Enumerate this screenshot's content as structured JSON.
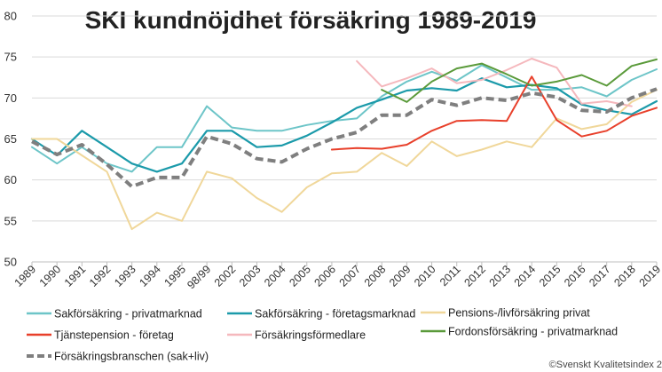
{
  "chart_data": {
    "type": "line",
    "title": "SKI kundnöjdhet försäkring 1989-2019",
    "categories": [
      "1989",
      "1990",
      "1991",
      "1992",
      "1993",
      "1994",
      "1995",
      "98/99",
      "2002",
      "2003",
      "2004",
      "2005",
      "2006",
      "2007",
      "2008",
      "2009",
      "2010",
      "2011",
      "2012",
      "2013",
      "2014",
      "2015",
      "2016",
      "2017",
      "2018",
      "2019"
    ],
    "ylim": [
      50,
      80
    ],
    "yticks": [
      50,
      55,
      60,
      65,
      70,
      75,
      80
    ],
    "grid": true,
    "legend_position": "bottom",
    "series": [
      {
        "name": "Sakförsäkring - privatmarknad",
        "color": "#6dc5c8",
        "width": 2,
        "dash": false,
        "values": [
          64,
          62,
          64,
          62,
          61,
          64,
          64,
          69,
          66.4,
          66,
          66,
          66.7,
          67.2,
          67.5,
          70.2,
          72,
          73.2,
          72.1,
          74,
          72.5,
          71,
          71,
          71.3,
          70.2,
          72.2,
          73.5
        ]
      },
      {
        "name": "Sakförsäkring - företagsmarknad",
        "color": "#1b9aaa",
        "width": 2.2,
        "dash": false,
        "values": [
          65,
          63,
          66,
          64,
          62,
          61,
          62,
          66,
          66,
          64,
          64.2,
          65.4,
          67,
          68.8,
          69.8,
          70.9,
          71.2,
          70.9,
          72.4,
          71.3,
          71.6,
          71.2,
          69.2,
          68.5,
          68,
          69.6
        ]
      },
      {
        "name": "Pensions-/livförsäkring privat",
        "color": "#f0d79a",
        "width": 2,
        "dash": false,
        "values": [
          65,
          65,
          63,
          61,
          54,
          56,
          55,
          61,
          60.2,
          57.8,
          56.1,
          59.1,
          60.8,
          61,
          63.3,
          61.7,
          64.7,
          62.9,
          63.7,
          64.7,
          64,
          67.5,
          66.2,
          66.8,
          69.5,
          71
        ]
      },
      {
        "name": "Tjänstepension - företag",
        "color": "#e8402b",
        "width": 2,
        "dash": false,
        "values": [
          null,
          null,
          null,
          null,
          null,
          null,
          null,
          null,
          null,
          null,
          null,
          null,
          63.7,
          63.9,
          63.8,
          64.3,
          66,
          67.2,
          67.3,
          67.2,
          72.6,
          67.3,
          65.3,
          66,
          67.8,
          68.8
        ]
      },
      {
        "name": "Försäkringsförmedlare",
        "color": "#f5b8bd",
        "width": 2,
        "dash": false,
        "values": [
          null,
          null,
          null,
          null,
          null,
          null,
          null,
          null,
          null,
          null,
          null,
          null,
          null,
          74.5,
          71.4,
          72.4,
          73.6,
          71.8,
          72.2,
          73.4,
          74.8,
          73.7,
          69.3,
          69.6,
          69,
          null
        ]
      },
      {
        "name": "Fordonsförsäkring - privatmarknad",
        "color": "#5a9a3a",
        "width": 2,
        "dash": false,
        "values": [
          null,
          null,
          null,
          null,
          null,
          null,
          null,
          null,
          null,
          null,
          null,
          null,
          null,
          null,
          71,
          69.5,
          72,
          73.6,
          74.2,
          72.9,
          71.5,
          72,
          72.8,
          71.5,
          73.9,
          74.7
        ]
      },
      {
        "name": "Försäkringsbranschen (sak+liv)",
        "color": "#7f7f7f",
        "width": 4,
        "dash": true,
        "values": [
          64.7,
          63.1,
          64.3,
          61.9,
          59.2,
          60.3,
          60.3,
          65.3,
          64.4,
          62.6,
          62.2,
          63.8,
          65,
          65.8,
          67.9,
          67.9,
          69.8,
          69.1,
          70,
          69.7,
          70.6,
          70.1,
          68.5,
          68.3,
          70,
          71.1
        ]
      }
    ]
  },
  "footer": {
    "copyright": "©Svenskt Kvalitetsindex 2"
  }
}
